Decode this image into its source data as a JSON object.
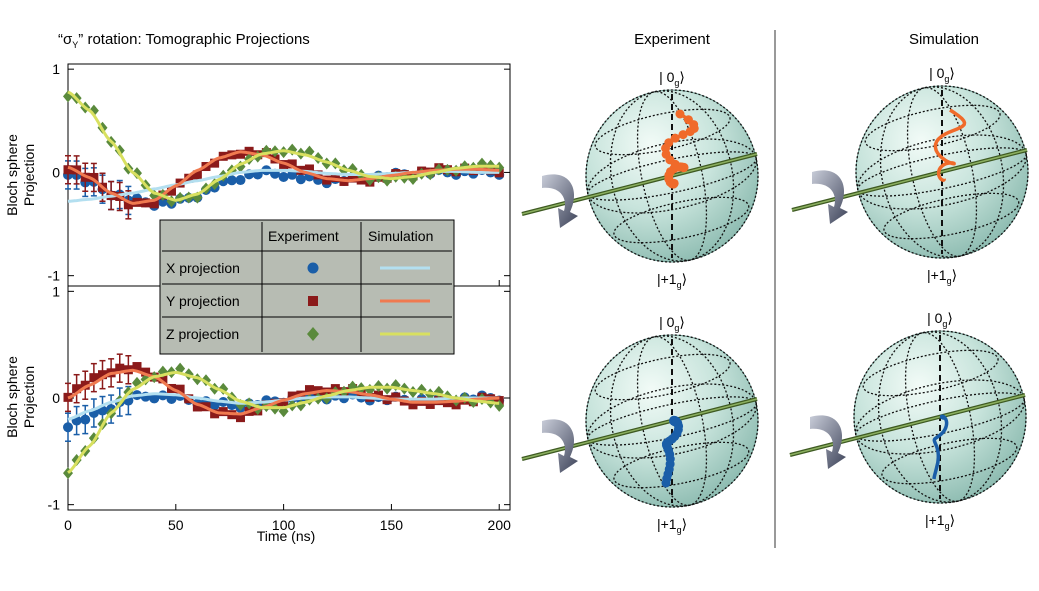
{
  "title": "“σ",
  "title_sub": "Y",
  "title_rest": "” rotation: Tomographic Projections",
  "ylabel_line1": "Bloch sphere",
  "ylabel_line2": "Projection",
  "xlabel": "Time (ns)",
  "panels_header": {
    "experiment": "Experiment",
    "simulation": "Simulation"
  },
  "ket_top": {
    "bar": "|",
    "digit": "0",
    "sub": "g",
    "close": "⟩"
  },
  "ket_bottom": {
    "bar": "|",
    "digit": "+1",
    "sub": "g",
    "close": "⟩"
  },
  "legend": {
    "col_experiment": "Experiment",
    "col_simulation": "Simulation",
    "rows": [
      "X projection",
      "Y projection",
      "Z projection"
    ]
  },
  "colors": {
    "x_marker": "#1a5ea8",
    "x_line": "#b3dff0",
    "y_marker": "#8b1a1a",
    "y_line": "#f07a50",
    "z_marker": "#5a8a3c",
    "z_line": "#d8e060",
    "sphere": "#c4e0d8",
    "traj_top": "#f06a2a",
    "traj_bottom": "#1a5ea8"
  },
  "chart_data": [
    {
      "type": "line",
      "title": "“σY” rotation: Tomographic Projections",
      "xlabel": "Time (ns)",
      "ylabel": "Bloch sphere Projection",
      "xlim": [
        0,
        205
      ],
      "ylim": [
        -1.1,
        1.05
      ],
      "yticks": [
        -1,
        0,
        1
      ],
      "xticks": [
        0,
        50,
        100,
        150,
        200
      ],
      "x": [
        0,
        10,
        20,
        30,
        40,
        50,
        60,
        70,
        80,
        90,
        100,
        110,
        120,
        130,
        140,
        150,
        160,
        170,
        180,
        190,
        200
      ],
      "series": [
        {
          "name": "X projection (Experiment)",
          "kind": "marker",
          "values": [
            0.0,
            -0.1,
            -0.2,
            -0.27,
            -0.3,
            -0.29,
            -0.22,
            -0.12,
            -0.05,
            0.0,
            -0.02,
            -0.06,
            -0.08,
            -0.07,
            -0.05,
            -0.03,
            -0.01,
            0.0,
            0.0,
            0.0,
            0.0
          ]
        },
        {
          "name": "X projection (Simulation)",
          "kind": "line",
          "values": [
            -0.28,
            -0.26,
            -0.23,
            -0.2,
            -0.16,
            -0.12,
            -0.08,
            -0.04,
            0.0,
            0.02,
            0.02,
            0.01,
            -0.01,
            -0.02,
            -0.02,
            -0.01,
            0.0,
            0.01,
            0.01,
            0.0,
            0.0
          ]
        },
        {
          "name": "Y projection (Experiment)",
          "kind": "marker",
          "values": [
            0.05,
            -0.05,
            -0.2,
            -0.32,
            -0.28,
            -0.15,
            0.0,
            0.12,
            0.2,
            0.18,
            0.1,
            0.02,
            -0.05,
            -0.08,
            -0.07,
            -0.04,
            -0.01,
            0.02,
            0.03,
            0.03,
            0.02
          ]
        },
        {
          "name": "Y projection (Simulation)",
          "kind": "line",
          "values": [
            0.05,
            -0.05,
            -0.2,
            -0.3,
            -0.27,
            -0.13,
            0.02,
            0.14,
            0.2,
            0.17,
            0.09,
            0.0,
            -0.06,
            -0.08,
            -0.06,
            -0.03,
            0.0,
            0.02,
            0.03,
            0.03,
            0.02
          ]
        },
        {
          "name": "Z projection (Experiment)",
          "kind": "marker",
          "values": [
            0.76,
            0.62,
            0.32,
            0.0,
            -0.2,
            -0.28,
            -0.22,
            -0.08,
            0.08,
            0.18,
            0.22,
            0.19,
            0.11,
            0.02,
            -0.05,
            -0.07,
            -0.04,
            0.0,
            0.04,
            0.06,
            0.07
          ]
        },
        {
          "name": "Z projection (Simulation)",
          "kind": "line",
          "values": [
            0.78,
            0.6,
            0.3,
            0.0,
            -0.2,
            -0.27,
            -0.21,
            -0.07,
            0.08,
            0.18,
            0.21,
            0.17,
            0.1,
            0.02,
            -0.04,
            -0.06,
            -0.04,
            0.0,
            0.04,
            0.06,
            0.06
          ]
        }
      ]
    },
    {
      "type": "line",
      "xlabel": "Time (ns)",
      "ylabel": "Bloch sphere Projection",
      "xlim": [
        0,
        205
      ],
      "ylim": [
        -1.05,
        1.05
      ],
      "yticks": [
        -1,
        0,
        1
      ],
      "xticks": [
        0,
        50,
        100,
        150,
        200
      ],
      "x": [
        0,
        10,
        20,
        30,
        40,
        50,
        60,
        70,
        80,
        90,
        100,
        110,
        120,
        130,
        140,
        150,
        160,
        170,
        180,
        190,
        200
      ],
      "series": [
        {
          "name": "X projection (Experiment)",
          "kind": "marker",
          "values": [
            -0.25,
            -0.18,
            -0.08,
            0.0,
            0.02,
            0.0,
            -0.03,
            -0.06,
            -0.07,
            -0.05,
            -0.02,
            0.0,
            0.01,
            0.01,
            0.0,
            -0.01,
            -0.02,
            -0.02,
            -0.01,
            0.0,
            0.0
          ]
        },
        {
          "name": "X projection (Simulation)",
          "kind": "line",
          "values": [
            -0.2,
            -0.12,
            -0.04,
            0.02,
            0.04,
            0.03,
            0.0,
            -0.03,
            -0.05,
            -0.04,
            -0.02,
            0.0,
            0.01,
            0.01,
            0.0,
            -0.01,
            -0.01,
            -0.01,
            0.0,
            0.0,
            0.0
          ]
        },
        {
          "name": "Y projection (Experiment)",
          "kind": "marker",
          "values": [
            0.03,
            0.15,
            0.26,
            0.28,
            0.22,
            0.08,
            -0.06,
            -0.15,
            -0.16,
            -0.1,
            -0.02,
            0.05,
            0.08,
            0.07,
            0.03,
            -0.01,
            -0.04,
            -0.05,
            -0.04,
            -0.02,
            0.0
          ]
        },
        {
          "name": "Y projection (Simulation)",
          "kind": "line",
          "values": [
            0.0,
            0.12,
            0.23,
            0.26,
            0.2,
            0.07,
            -0.06,
            -0.14,
            -0.15,
            -0.09,
            -0.02,
            0.04,
            0.07,
            0.06,
            0.03,
            -0.01,
            -0.04,
            -0.04,
            -0.03,
            -0.01,
            0.0
          ]
        },
        {
          "name": "Z projection (Experiment)",
          "kind": "marker",
          "values": [
            -0.68,
            -0.45,
            -0.12,
            0.1,
            0.22,
            0.26,
            0.2,
            0.08,
            -0.04,
            -0.1,
            -0.1,
            -0.05,
            0.02,
            0.08,
            0.1,
            0.1,
            0.08,
            0.04,
            0.0,
            -0.03,
            -0.05
          ]
        },
        {
          "name": "Z projection (Simulation)",
          "kind": "line",
          "values": [
            -0.7,
            -0.45,
            -0.14,
            0.08,
            0.2,
            0.24,
            0.19,
            0.08,
            -0.03,
            -0.09,
            -0.09,
            -0.04,
            0.02,
            0.07,
            0.1,
            0.1,
            0.07,
            0.04,
            0.0,
            -0.03,
            -0.05
          ]
        }
      ]
    }
  ]
}
